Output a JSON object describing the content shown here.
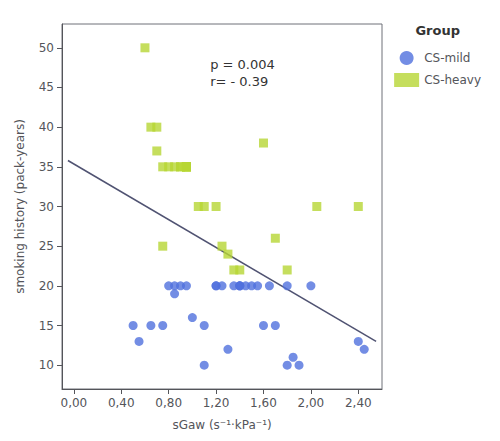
{
  "chart_data": {
    "type": "scatter",
    "xlabel": "sGaw (s⁻¹·kPa⁻¹)",
    "ylabel": "smoking history (pack-years)",
    "xlim": [
      -0.1,
      2.6
    ],
    "ylim": [
      7,
      53
    ],
    "xticks": [
      {
        "value": 0.0,
        "label": "0,00"
      },
      {
        "value": 0.4,
        "label": "0,40"
      },
      {
        "value": 0.8,
        "label": "0,80"
      },
      {
        "value": 1.2,
        "label": "1,20"
      },
      {
        "value": 1.6,
        "label": "1,60"
      },
      {
        "value": 2.0,
        "label": "2,00"
      },
      {
        "value": 2.4,
        "label": "2,40"
      }
    ],
    "yticks": [
      10,
      15,
      20,
      25,
      30,
      35,
      40,
      45,
      50
    ],
    "grid": false,
    "legend": "right",
    "legend_title": "Group",
    "annotations": [
      {
        "text": "p = 0.004\nr= - 0.39",
        "x": 1.15,
        "y": 49
      }
    ],
    "series": [
      {
        "name": "CS-mild",
        "type": "scatter",
        "marker": "circle",
        "x": [
          0.5,
          0.55,
          0.65,
          0.75,
          0.8,
          0.85,
          0.85,
          0.9,
          0.95,
          1.0,
          1.1,
          1.1,
          1.2,
          1.2,
          1.25,
          1.3,
          1.35,
          1.4,
          1.4,
          1.4,
          1.45,
          1.5,
          1.55,
          1.6,
          1.65,
          1.7,
          1.8,
          1.8,
          1.85,
          1.9,
          2.0,
          2.4,
          2.45
        ],
        "values": [
          15,
          13,
          15,
          15,
          20,
          20,
          19,
          20,
          20,
          16,
          10,
          15,
          20,
          20,
          20,
          12,
          20,
          20,
          20,
          20,
          20,
          20,
          20,
          15,
          20,
          15,
          20,
          10,
          11,
          10,
          20,
          13,
          12
        ]
      },
      {
        "name": "CS-heavy",
        "type": "scatter",
        "marker": "square",
        "x": [
          0.6,
          0.65,
          0.7,
          0.7,
          0.75,
          0.75,
          0.8,
          0.85,
          0.9,
          0.9,
          0.95,
          0.95,
          0.95,
          0.95,
          0.95,
          0.95,
          1.05,
          1.1,
          1.2,
          1.25,
          1.3,
          1.35,
          1.4,
          1.6,
          1.7,
          1.8,
          2.05,
          2.4
        ],
        "values": [
          50,
          40,
          40,
          37,
          25,
          35,
          35,
          35,
          35,
          35,
          35,
          35,
          35,
          35,
          35,
          35,
          30,
          30,
          30,
          25,
          24,
          22,
          22,
          38,
          26,
          22,
          30,
          30
        ]
      },
      {
        "type": "line",
        "line_style": "solid",
        "x": [
          -0.05,
          2.55
        ],
        "values": [
          35.8,
          13.0
        ]
      }
    ]
  }
}
